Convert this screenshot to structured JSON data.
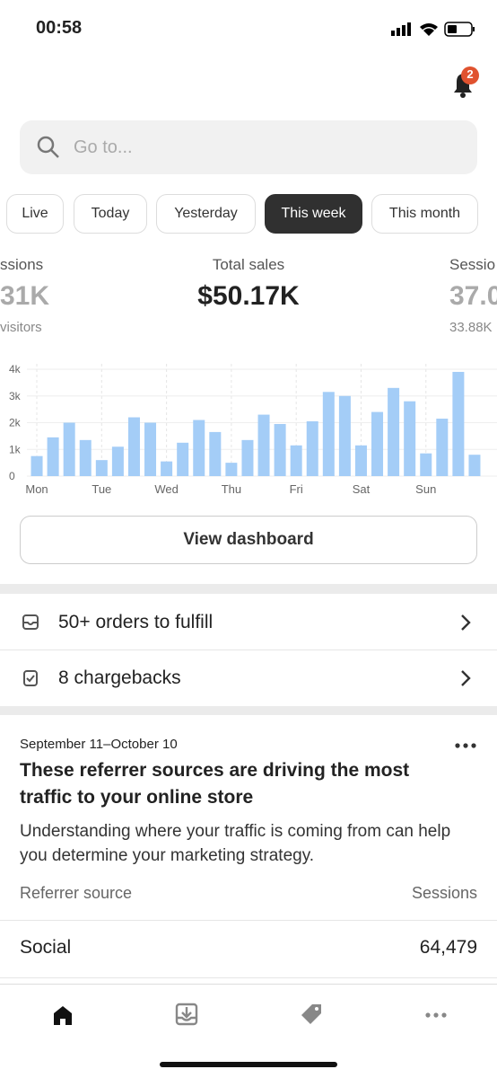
{
  "status_bar": {
    "time": "00:58"
  },
  "header": {
    "notification_count": "2"
  },
  "search": {
    "placeholder": "Go to..."
  },
  "tabs": [
    "Live",
    "Today",
    "Yesterday",
    "This week",
    "This month"
  ],
  "stats": {
    "left": {
      "label": "ssions",
      "value": "31K",
      "sub": "visitors"
    },
    "center": {
      "label": "Total sales",
      "value": "$50.17K"
    },
    "right": {
      "label": "Sessio",
      "value": "37.0",
      "sub": "33.88K"
    }
  },
  "chart_data": {
    "type": "bar",
    "categories": [
      "Mon",
      null,
      null,
      null,
      "Tue",
      null,
      null,
      null,
      "Wed",
      null,
      null,
      null,
      "Thu",
      null,
      null,
      null,
      "Fri",
      null,
      null,
      null,
      "Sat",
      null,
      null,
      null,
      "Sun",
      null,
      null,
      null
    ],
    "values": [
      750,
      1450,
      2000,
      1350,
      600,
      1100,
      2200,
      2000,
      550,
      1250,
      2100,
      1650,
      500,
      1350,
      2300,
      1950,
      1150,
      2050,
      3150,
      3000,
      1150,
      2400,
      3300,
      2800,
      850,
      2150,
      3900,
      800
    ],
    "color": "#a4cdf7",
    "ylim": [
      0,
      4000
    ],
    "yticks": [
      0,
      {
        "value": 1000,
        "label": "1k"
      },
      {
        "value": 2000,
        "label": "2k"
      },
      {
        "value": 3000,
        "label": "3k"
      },
      {
        "value": 4000,
        "label": "4k"
      }
    ],
    "grid": true
  },
  "dashboard_button": "View dashboard",
  "tasks": [
    "50+ orders to fulfill",
    "8 chargebacks"
  ],
  "card": {
    "date": "September 11–October 10",
    "title": "These referrer sources are driving the most traffic to your online store",
    "body": "Understanding where your traffic is coming from can help you determine your marketing strategy.",
    "table": {
      "header": [
        "Referrer source",
        "Sessions"
      ],
      "rows": [
        [
          "Social",
          "64,479"
        ]
      ]
    }
  }
}
